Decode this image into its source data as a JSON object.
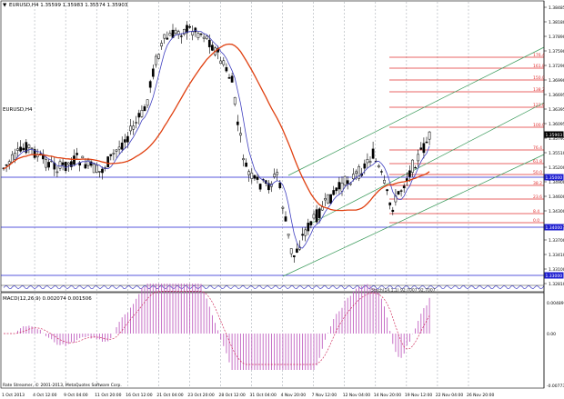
{
  "header": {
    "symbol_info": "EURUSD,H4  1.35599 1.35983 1.35574 1.35903",
    "symbol": "EURUSD,H4"
  },
  "macd": {
    "label": "MACD(12,26,9) 0.002074 0.001506",
    "axis_labels": [
      "0.004899",
      "0.00",
      "-0.007737"
    ]
  },
  "footer": {
    "copyright": "Rate Streamer, © 2001-2013, MetaQuotes Software Corp."
  },
  "price_axis": {
    "labels": [
      "1.38485",
      "1.38180",
      "1.37890",
      "1.37590",
      "1.37290",
      "1.36990",
      "1.36695",
      "1.36395",
      "1.36095",
      "1.35795",
      "1.35510",
      "1.35200",
      "1.34900",
      "1.34600",
      "1.34300",
      "1.34000",
      "1.33700",
      "1.33410",
      "1.33100",
      "1.32810"
    ],
    "markers": [
      {
        "label": "1.35903",
        "kind": "current",
        "color": "#ffffff",
        "bg": "#000000"
      },
      {
        "label": "1.35000",
        "kind": "level",
        "color": "#ffffff",
        "bg": "#1f1fd1"
      },
      {
        "label": "1.34000",
        "kind": "level",
        "color": "#ffffff",
        "bg": "#1f1fd1"
      },
      {
        "label": "1.33000",
        "kind": "level",
        "color": "#ffffff",
        "bg": "#1f1fd1"
      }
    ]
  },
  "time_axis": {
    "labels": [
      "1 Oct 2013",
      "4 Oct 12:00",
      "9 Oct 04:00",
      "11 Oct 20:00",
      "16 Oct 12:00",
      "21 Oct 04:00",
      "23 Oct 20:00",
      "28 Oct 12:00",
      "31 Oct 04:00",
      "4 Nov 20:00",
      "7 Nov 12:00",
      "12 Nov 04:00",
      "14 Nov 20:00",
      "19 Nov 12:00",
      "22 Nov 04:00",
      "26 Nov 20:00"
    ]
  },
  "fibonacci": {
    "levels": [
      "176.4",
      "161.8",
      "150.0",
      "138.2",
      "123.6",
      "100.0",
      "76.4",
      "61.8",
      "50.0",
      "38.2",
      "23.6",
      "8.4",
      "0.0"
    ]
  },
  "strip_text": "Stoch(14,1,1) 92.7007 92.7007",
  "colors": {
    "candle": "#000000",
    "ma_fast": "#4040c0",
    "ma_slow": "#e04010",
    "fib": "#e03030",
    "channel": "#3a9a5a",
    "level_line": "#1f1fd1",
    "macd_hist": "#c060c0",
    "macd_signal": "#d03060",
    "grid": "#9aa0a8"
  }
}
